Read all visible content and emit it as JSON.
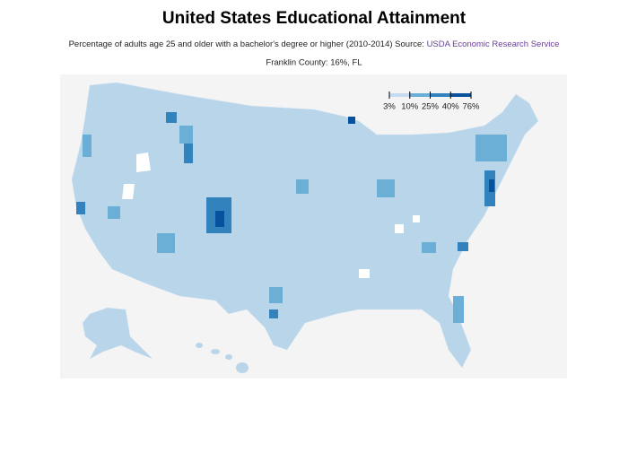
{
  "title": "United States Educational Attainment",
  "subtitle": "Percentage of adults age 25 and older with a bachelor's degree or higher (2010-2014) Source:",
  "source_link": "USDA Economic Research Service",
  "hover_text": "Franklin County: 16%, FL",
  "legend": {
    "thresholds": [
      {
        "value": 3,
        "label": "3%"
      },
      {
        "value": 10,
        "label": "10%"
      },
      {
        "value": 25,
        "label": "25%"
      },
      {
        "value": 40,
        "label": "40%"
      },
      {
        "value": 76,
        "label": "76%"
      }
    ],
    "colors": [
      "#c6dbef",
      "#6baed6",
      "#3182bd",
      "#08519c"
    ]
  }
}
